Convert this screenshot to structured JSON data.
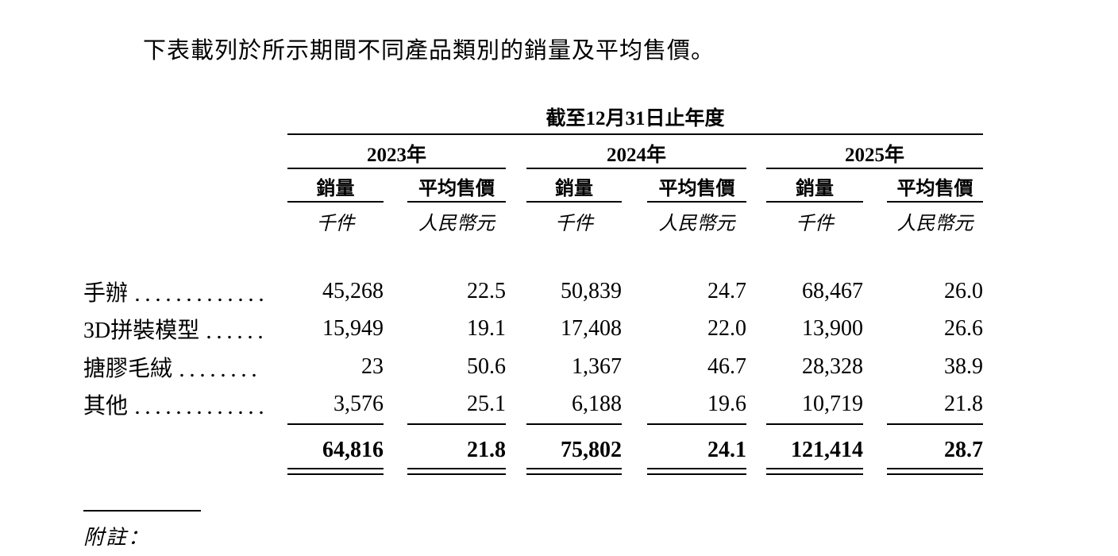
{
  "intro": "下表載列於所示期間不同產品類別的銷量及平均售價。",
  "table": {
    "caption": "截至12月31日止年度",
    "year_groups": [
      {
        "label": "2023年"
      },
      {
        "label": "2024年"
      },
      {
        "label": "2025年"
      }
    ],
    "col_headers": {
      "volume": "銷量",
      "asp": "平均售價"
    },
    "units": {
      "volume": "千件",
      "asp": "人民幣元"
    },
    "rows": [
      {
        "label": "手辦",
        "values": [
          "45,268",
          "22.5",
          "50,839",
          "24.7",
          "68,467",
          "26.0"
        ]
      },
      {
        "label": "3D拼裝模型",
        "values": [
          "15,949",
          "19.1",
          "17,408",
          "22.0",
          "13,900",
          "26.6"
        ]
      },
      {
        "label": "搪膠毛絨",
        "values": [
          "23",
          "50.6",
          "1,367",
          "46.7",
          "28,328",
          "38.9"
        ]
      },
      {
        "label": "其他",
        "values": [
          "3,576",
          "25.1",
          "6,188",
          "19.6",
          "10,719",
          "21.8"
        ]
      }
    ],
    "totals": [
      "64,816",
      "21.8",
      "75,802",
      "24.1",
      "121,414",
      "28.7"
    ]
  },
  "footnote": {
    "label": "附註："
  },
  "colors": {
    "text": "#000000",
    "background": "#ffffff"
  }
}
